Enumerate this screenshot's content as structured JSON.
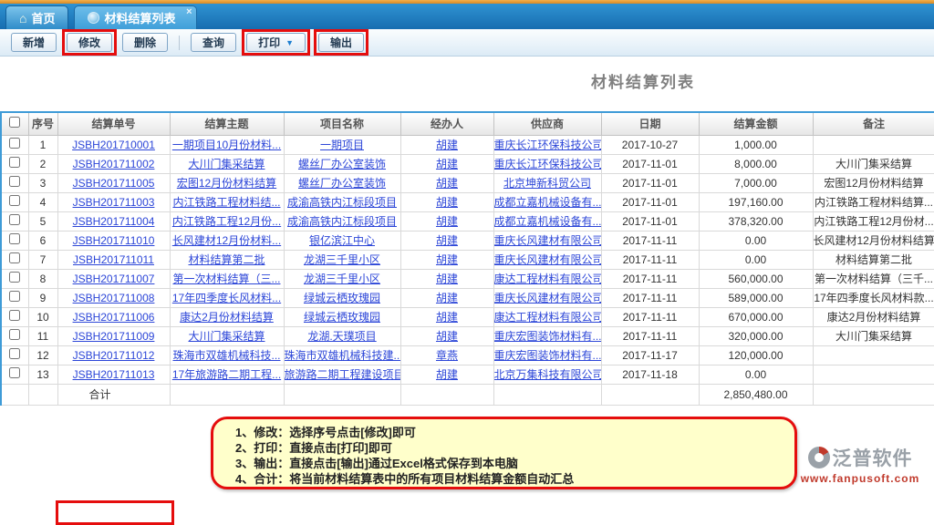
{
  "tabs": [
    {
      "label": "首页",
      "icon": "home-icon"
    },
    {
      "label": "材料结算列表",
      "icon": "globe-icon",
      "close": "×"
    }
  ],
  "toolbar": {
    "buttons": [
      {
        "label": "新增"
      },
      {
        "label": "修改"
      },
      {
        "label": "删除"
      },
      {
        "label": "查询"
      },
      {
        "label": "打印",
        "caret": "▼"
      },
      {
        "label": "输出"
      }
    ]
  },
  "page_title": "材料结算列表",
  "table": {
    "columns": [
      "序号",
      "结算单号",
      "结算主题",
      "项目名称",
      "经办人",
      "供应商",
      "日期",
      "结算金额",
      "备注"
    ],
    "rows": [
      {
        "no": "1",
        "bill_no": "JSBH201710001",
        "subject": "一期项目10月份材料...",
        "project": "一期项目",
        "handler": "胡建",
        "supplier": "重庆长江环保科技公司",
        "date": "2017-10-27",
        "amount": "1,000.00",
        "remark": ""
      },
      {
        "no": "2",
        "bill_no": "JSBH201711002",
        "subject": "大川门集采结算",
        "project": "螺丝厂办公室装饰",
        "handler": "胡建",
        "supplier": "重庆长江环保科技公司",
        "date": "2017-11-01",
        "amount": "8,000.00",
        "remark": "大川门集采结算"
      },
      {
        "no": "3",
        "bill_no": "JSBH201711005",
        "subject": "宏图12月份材料结算",
        "project": "螺丝厂办公室装饰",
        "handler": "胡建",
        "supplier": "北京坤新科贸公司",
        "date": "2017-11-01",
        "amount": "7,000.00",
        "remark": "宏图12月份材料结算"
      },
      {
        "no": "4",
        "bill_no": "JSBH201711003",
        "subject": "内江铁路工程材料结...",
        "project": "成渝高铁内江标段项目",
        "handler": "胡建",
        "supplier": "成都立嘉机械设备有...",
        "date": "2017-11-01",
        "amount": "197,160.00",
        "remark": "内江铁路工程材料结算..."
      },
      {
        "no": "5",
        "bill_no": "JSBH201711004",
        "subject": "内江铁路工程12月份...",
        "project": "成渝高铁内江标段项目",
        "handler": "胡建",
        "supplier": "成都立嘉机械设备有...",
        "date": "2017-11-01",
        "amount": "378,320.00",
        "remark": "内江铁路工程12月份材..."
      },
      {
        "no": "6",
        "bill_no": "JSBH201711010",
        "subject": "长风建材12月份材料...",
        "project": "银亿滨江中心",
        "handler": "胡建",
        "supplier": "重庆长风建材有限公司",
        "date": "2017-11-11",
        "amount": "0.00",
        "remark": "长风建材12月份材料结算"
      },
      {
        "no": "7",
        "bill_no": "JSBH201711011",
        "subject": "材料结算第二批",
        "project": "龙湖三千里小区",
        "handler": "胡建",
        "supplier": "重庆长风建材有限公司",
        "date": "2017-11-11",
        "amount": "0.00",
        "remark": "材料结算第二批"
      },
      {
        "no": "8",
        "bill_no": "JSBH201711007",
        "subject": "第一次材料结算（三...",
        "project": "龙湖三千里小区",
        "handler": "胡建",
        "supplier": "康达工程材料有限公司",
        "date": "2017-11-11",
        "amount": "560,000.00",
        "remark": "第一次材料结算（三千..."
      },
      {
        "no": "9",
        "bill_no": "JSBH201711008",
        "subject": "17年四季度长风材料...",
        "project": "绿城云栖玫瑰园",
        "handler": "胡建",
        "supplier": "重庆长风建材有限公司",
        "date": "2017-11-11",
        "amount": "589,000.00",
        "remark": "17年四季度长风材料款..."
      },
      {
        "no": "10",
        "bill_no": "JSBH201711006",
        "subject": "康达2月份材料结算",
        "project": "绿城云栖玫瑰园",
        "handler": "胡建",
        "supplier": "康达工程材料有限公司",
        "date": "2017-11-11",
        "amount": "670,000.00",
        "remark": "康达2月份材料结算"
      },
      {
        "no": "11",
        "bill_no": "JSBH201711009",
        "subject": "大川门集采结算",
        "project": "龙湖.天璞项目",
        "handler": "胡建",
        "supplier": "重庆宏图装饰材料有...",
        "date": "2017-11-11",
        "amount": "320,000.00",
        "remark": "大川门集采结算"
      },
      {
        "no": "12",
        "bill_no": "JSBH201711012",
        "subject": "珠海市双雄机械科技...",
        "project": "珠海市双雄机械科技建...",
        "handler": "章燕",
        "supplier": "重庆宏图装饰材料有...",
        "date": "2017-11-17",
        "amount": "120,000.00",
        "remark": ""
      },
      {
        "no": "13",
        "bill_no": "JSBH201711013",
        "subject": "17年旅游路二期工程...",
        "project": "旅游路二期工程建设项目",
        "handler": "胡建",
        "supplier": "北京万集科技有限公司",
        "date": "2017-11-18",
        "amount": "0.00",
        "remark": ""
      }
    ],
    "total_label": "合计",
    "total_amount": "2,850,480.00"
  },
  "notes": {
    "lines": [
      "1、修改：选择序号点击[修改]即可",
      "2、打印：直接点击[打印]即可",
      "3、输出：直接点击[输出]通过Excel格式保存到本电脑",
      "4、合计：将当前材料结算表中的所有项目材料结算金额自动汇总"
    ]
  },
  "logo": {
    "name": "泛普软件",
    "url": "www.fanpusoft.com"
  },
  "colors": {
    "accent_blue": "#2f93d2",
    "annotation_red": "#e50d0d",
    "note_bg": "#ffffcb",
    "link": "#2c46d8"
  }
}
